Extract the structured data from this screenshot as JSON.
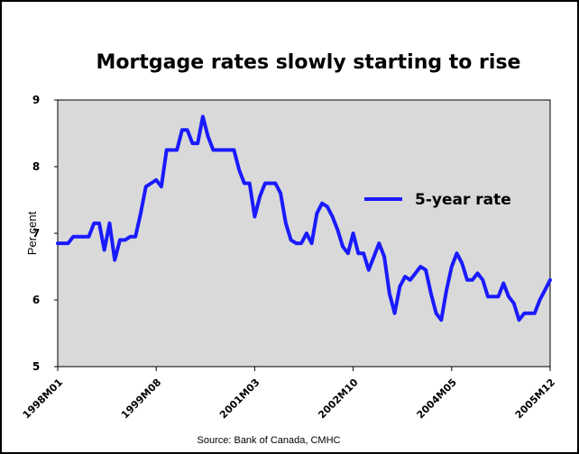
{
  "chart_data": {
    "type": "line",
    "title": "Mortgage rates slowly starting to rise",
    "ylabel": "Per cent",
    "xlabel": "",
    "source": "Source: Bank of Canada, CMHC",
    "ylim": [
      5,
      9
    ],
    "yticks": [
      "5",
      "6",
      "7",
      "8",
      "9"
    ],
    "xtick_labels": [
      "1998M01",
      "1999M08",
      "2001M03",
      "2002M10",
      "2004M05",
      "2005M12"
    ],
    "start": "1998M01",
    "end": "2005M12",
    "legend_position": "right",
    "grid": false,
    "colors": {
      "line": "#1a1aff",
      "plot_background": "#d9d9d9"
    },
    "series": [
      {
        "name": "5-year rate",
        "values": [
          6.85,
          6.85,
          6.85,
          6.95,
          6.95,
          6.95,
          6.95,
          7.15,
          7.15,
          6.75,
          7.15,
          6.6,
          6.9,
          6.9,
          6.95,
          6.95,
          7.3,
          7.7,
          7.75,
          7.8,
          7.7,
          8.25,
          8.25,
          8.25,
          8.55,
          8.55,
          8.35,
          8.35,
          8.75,
          8.45,
          8.25,
          8.25,
          8.25,
          8.25,
          8.25,
          7.95,
          7.75,
          7.75,
          7.25,
          7.55,
          7.75,
          7.75,
          7.75,
          7.6,
          7.15,
          6.9,
          6.85,
          6.85,
          7.0,
          6.85,
          7.3,
          7.45,
          7.4,
          7.25,
          7.05,
          6.8,
          6.7,
          7.0,
          6.7,
          6.7,
          6.45,
          6.65,
          6.85,
          6.65,
          6.1,
          5.8,
          6.2,
          6.35,
          6.3,
          6.4,
          6.5,
          6.45,
          6.1,
          5.8,
          5.7,
          6.15,
          6.5,
          6.7,
          6.55,
          6.3,
          6.3,
          6.4,
          6.3,
          6.05,
          6.05,
          6.05,
          6.25,
          6.05,
          5.95,
          5.7,
          5.8,
          5.8,
          5.8,
          6.0,
          6.15,
          6.3
        ]
      }
    ]
  }
}
